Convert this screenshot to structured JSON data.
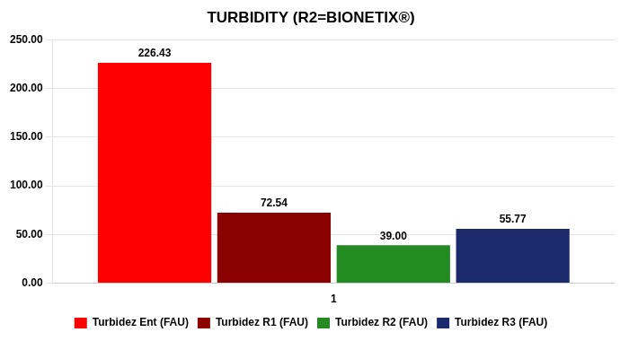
{
  "chart_data": {
    "type": "bar",
    "title": "TURBIDITY (R2=BIONETIX®)",
    "categories": [
      "1"
    ],
    "series": [
      {
        "name": "Turbidez Ent (FAU)",
        "color": "#ff0000",
        "values": [
          226.43
        ],
        "value_labels": [
          "226.43"
        ]
      },
      {
        "name": "Turbidez R1 (FAU)",
        "color": "#8b0000",
        "values": [
          72.54
        ],
        "value_labels": [
          "72.54"
        ]
      },
      {
        "name": "Turbidez R2 (FAU)",
        "color": "#228b22",
        "values": [
          39.0
        ],
        "value_labels": [
          "39.00"
        ]
      },
      {
        "name": "Turbidez R3 (FAU)",
        "color": "#1b2a6b",
        "values": [
          55.77
        ],
        "value_labels": [
          "55.77"
        ]
      }
    ],
    "ylim": [
      0,
      250
    ],
    "yticks": [
      {
        "value": 0,
        "label": "0.00"
      },
      {
        "value": 50,
        "label": "50.00"
      },
      {
        "value": 100,
        "label": "100.00"
      },
      {
        "value": 150,
        "label": "150.00"
      },
      {
        "value": 200,
        "label": "200.00"
      },
      {
        "value": 250,
        "label": "250.00"
      }
    ],
    "grid": true,
    "legend": "bottom",
    "data_labels": true
  }
}
